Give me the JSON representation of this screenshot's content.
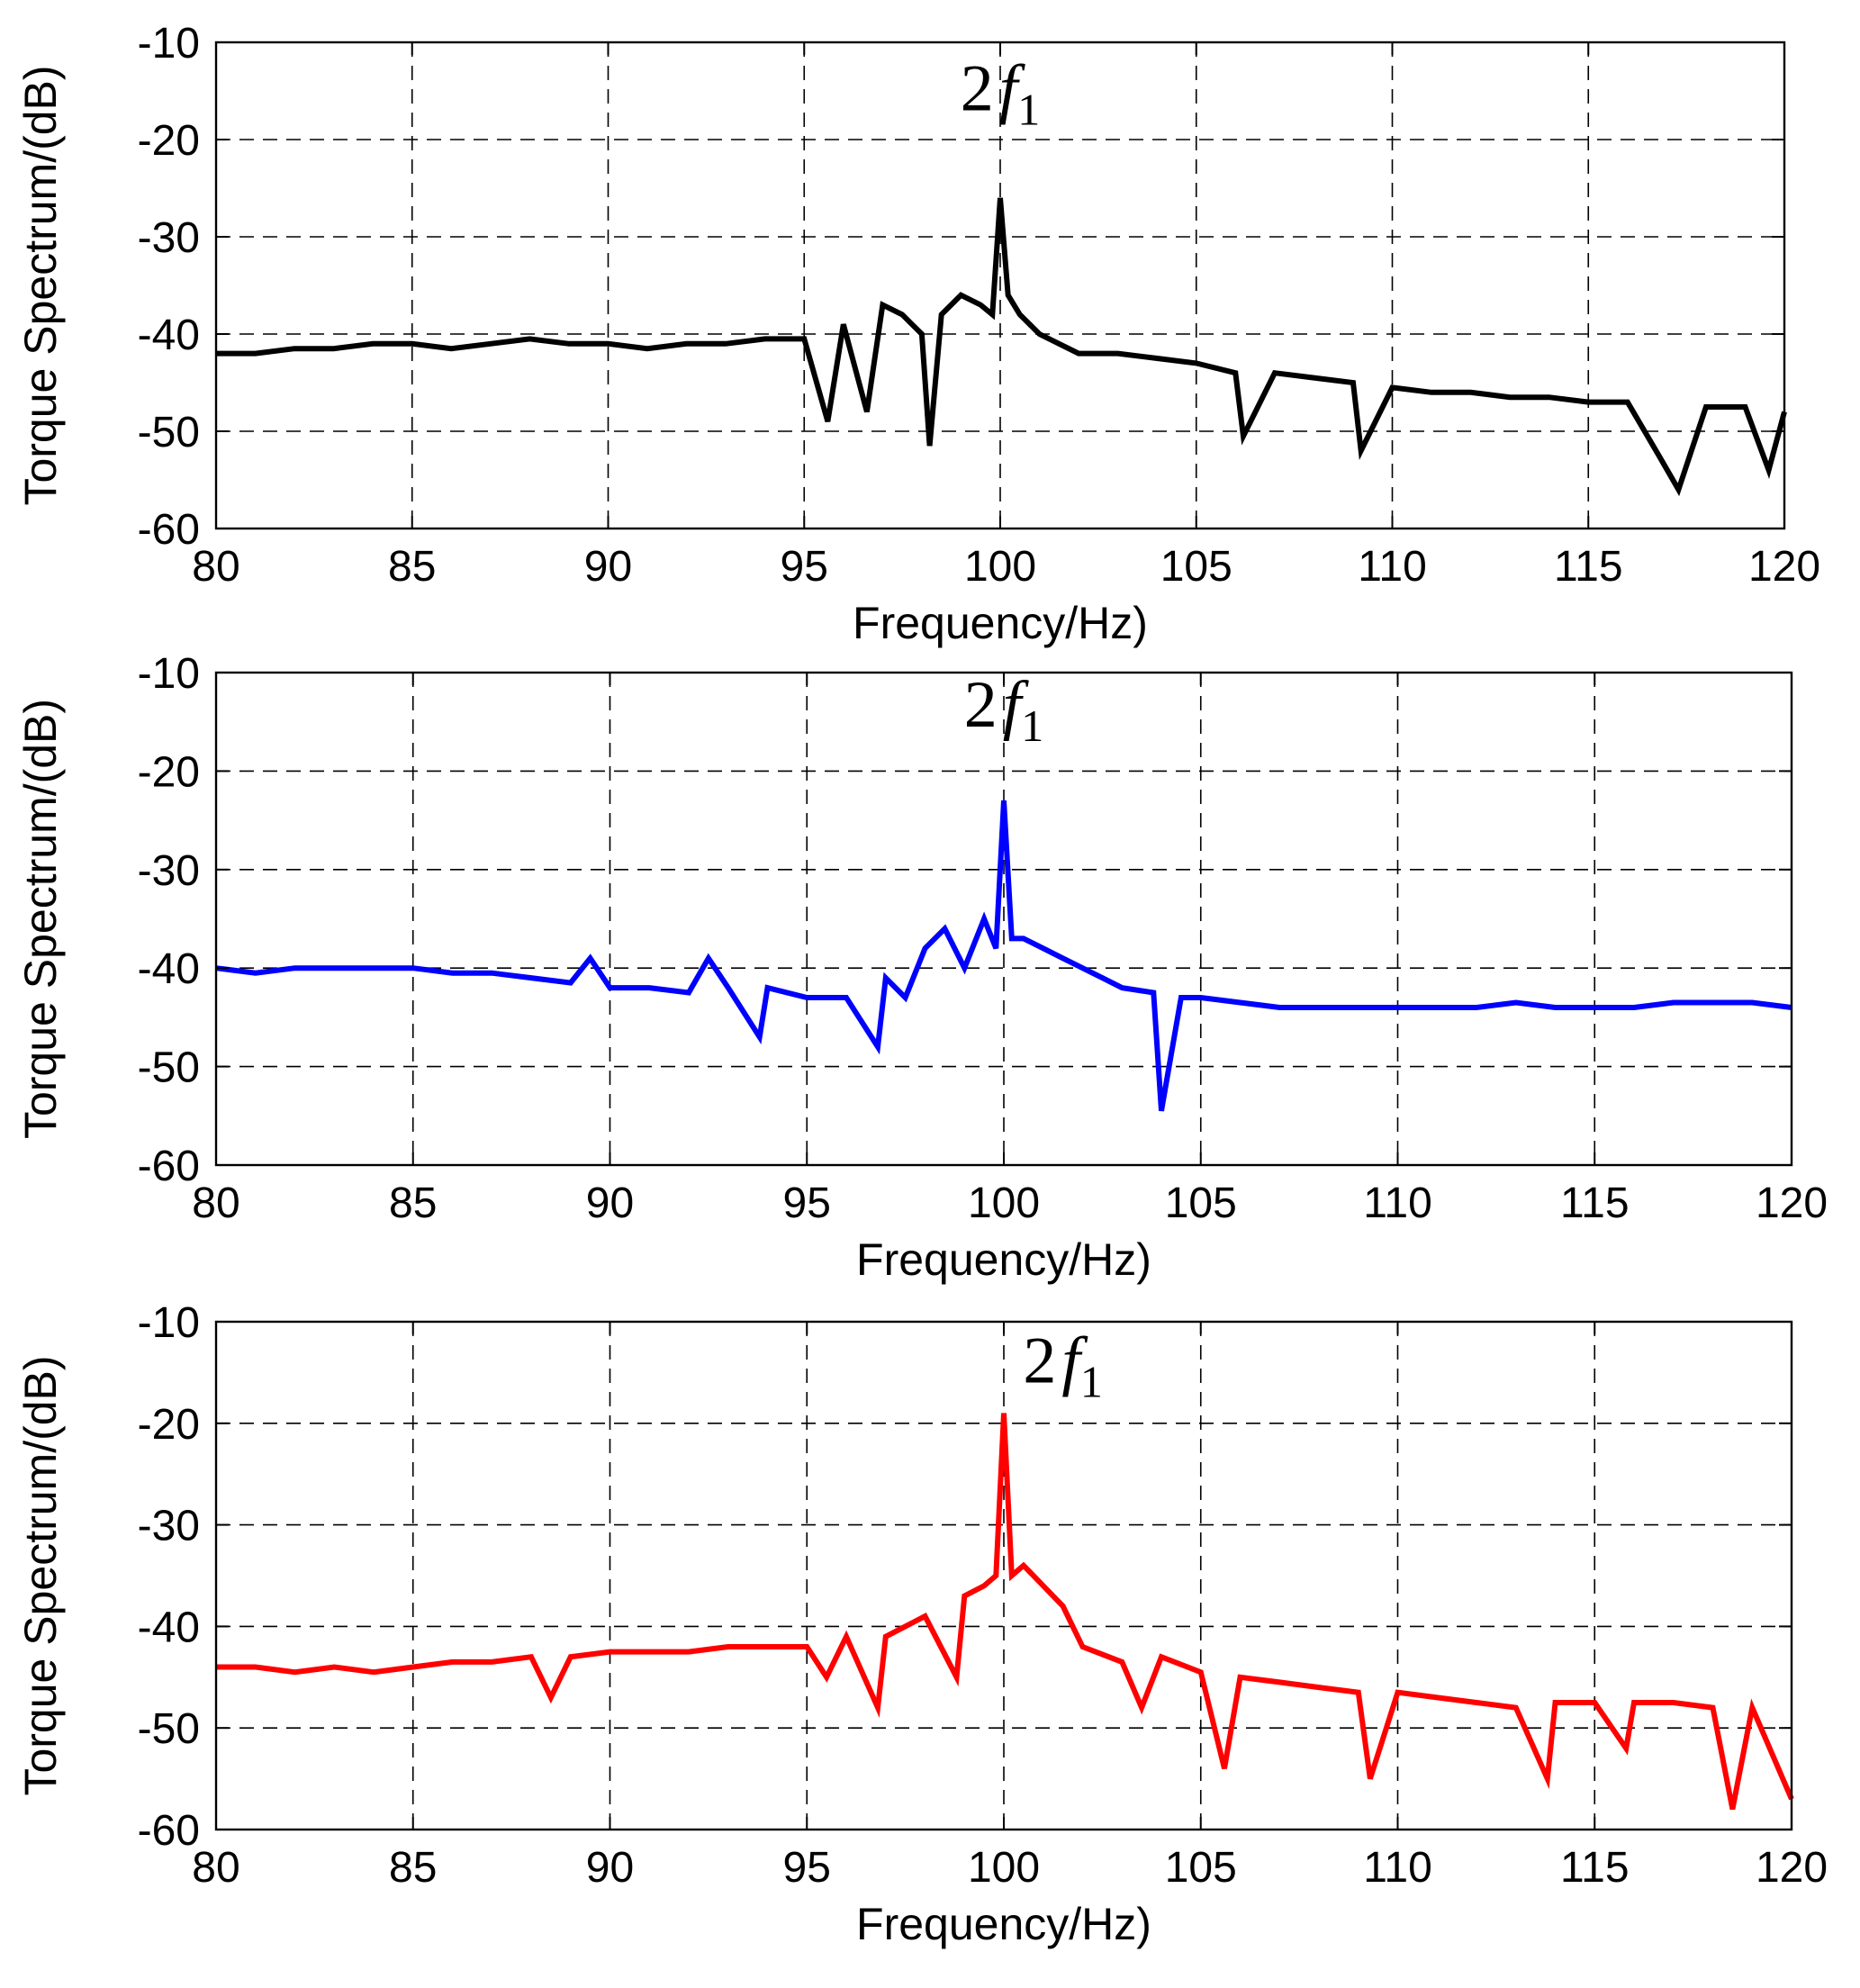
{
  "chart_data": [
    {
      "type": "line",
      "panel": "top",
      "xlabel": "Frequency/Hz)",
      "ylabel": "Torque Spectrum/(dB)",
      "xlim": [
        80,
        120
      ],
      "ylim": [
        -60,
        -10
      ],
      "xticks": [
        80,
        85,
        90,
        95,
        100,
        105,
        110,
        115,
        120
      ],
      "yticks": [
        -10,
        -20,
        -30,
        -40,
        -50,
        -60
      ],
      "xtick_labels": [
        "80",
        "85",
        "90",
        "95",
        "100",
        "105",
        "110",
        "115",
        "120"
      ],
      "ytick_labels": [
        "-10",
        "-20",
        "-30",
        "-40",
        "-50",
        "-60"
      ],
      "grid": true,
      "annotation": {
        "base": "2",
        "italic": "f",
        "subscript": "1",
        "x": 100,
        "y": -17
      },
      "series": [
        {
          "name": "torque spectrum (black)",
          "color": "#000000",
          "x": [
            80,
            81,
            82,
            83,
            84,
            85,
            86,
            87,
            88,
            89,
            90,
            91,
            92,
            93,
            94,
            95,
            95.6,
            96,
            96.6,
            97,
            97.5,
            98,
            98.2,
            98.5,
            99,
            99.5,
            99.8,
            100,
            100.2,
            100.5,
            101,
            101.5,
            102,
            103,
            104,
            105,
            106,
            106.2,
            107,
            108,
            109,
            109.2,
            110,
            111,
            112,
            113,
            114,
            115,
            116,
            116.8,
            117.3,
            118,
            119,
            119.6,
            120
          ],
          "y": [
            -42,
            -42,
            -41.5,
            -41.5,
            -41,
            -41,
            -41.5,
            -41,
            -40.5,
            -41,
            -41,
            -41.5,
            -41,
            -41,
            -40.5,
            -40.5,
            -49,
            -39,
            -48,
            -37,
            -38,
            -40,
            -51.5,
            -38,
            -36,
            -37,
            -38,
            -26,
            -36,
            -38,
            -40,
            -41,
            -42,
            -42,
            -42.5,
            -43,
            -44,
            -50.5,
            -44,
            -44.5,
            -45,
            -52,
            -45.5,
            -46,
            -46,
            -46.5,
            -46.5,
            -47,
            -47,
            -52.5,
            -56,
            -47.5,
            -47.5,
            -54,
            -48
          ]
        }
      ]
    },
    {
      "type": "line",
      "panel": "middle",
      "xlabel": "Frequency/Hz)",
      "ylabel": "Torque Spectrum/(dB)",
      "xlim": [
        80,
        120
      ],
      "ylim": [
        -60,
        -10
      ],
      "xticks": [
        80,
        85,
        90,
        95,
        100,
        105,
        110,
        115,
        120
      ],
      "yticks": [
        -10,
        -20,
        -30,
        -40,
        -50,
        -60
      ],
      "xtick_labels": [
        "80",
        "85",
        "90",
        "95",
        "100",
        "105",
        "110",
        "115",
        "120"
      ],
      "ytick_labels": [
        "-10",
        "-20",
        "-30",
        "-40",
        "-50",
        "-60"
      ],
      "grid": true,
      "annotation": {
        "base": "2",
        "italic": "f",
        "subscript": "1",
        "x": 100,
        "y": -15.5
      },
      "series": [
        {
          "name": "torque spectrum (blue)",
          "color": "#0000ff",
          "x": [
            80,
            81,
            82,
            83,
            84,
            85,
            86,
            87,
            88,
            89,
            89.5,
            90,
            91,
            92,
            92.5,
            93,
            93.8,
            94,
            95,
            96,
            96.8,
            97,
            97.5,
            98,
            98.5,
            99,
            99.5,
            99.8,
            100,
            100.2,
            100.5,
            101,
            101.5,
            102,
            102.5,
            103,
            103.8,
            104,
            104.5,
            105,
            106,
            107,
            108,
            109,
            110,
            111,
            112,
            113,
            114,
            115,
            116,
            117,
            118,
            119,
            120
          ],
          "y": [
            -40,
            -40.5,
            -40,
            -40,
            -40,
            -40,
            -40.5,
            -40.5,
            -41,
            -41.5,
            -39,
            -42,
            -42,
            -42.5,
            -39,
            -42,
            -47,
            -42,
            -43,
            -43,
            -48,
            -41,
            -43,
            -38,
            -36,
            -40,
            -35,
            -38,
            -23,
            -37,
            -37,
            -38,
            -39,
            -40,
            -41,
            -42,
            -42.5,
            -54.5,
            -43,
            -43,
            -43.5,
            -44,
            -44,
            -44,
            -44,
            -44,
            -44,
            -43.5,
            -44,
            -44,
            -44,
            -43.5,
            -43.5,
            -43.5,
            -44
          ]
        }
      ]
    },
    {
      "type": "line",
      "panel": "bottom",
      "xlabel": "Frequency/Hz)",
      "ylabel": "Torque Spectrum/(dB)",
      "xlim": [
        80,
        120
      ],
      "ylim": [
        -60,
        -10
      ],
      "xticks": [
        80,
        85,
        90,
        95,
        100,
        105,
        110,
        115,
        120
      ],
      "yticks": [
        -10,
        -20,
        -30,
        -40,
        -50,
        -60
      ],
      "xtick_labels": [
        "80",
        "85",
        "90",
        "95",
        "100",
        "105",
        "110",
        "115",
        "120"
      ],
      "ytick_labels": [
        "-10",
        "-20",
        "-30",
        "-40",
        "-50",
        "-60"
      ],
      "grid": true,
      "annotation": {
        "base": "2",
        "italic": "f",
        "subscript": "1",
        "x": 101.5,
        "y": -16
      },
      "series": [
        {
          "name": "torque spectrum (red)",
          "color": "#ff0000",
          "x": [
            80,
            81,
            82,
            83,
            84,
            85,
            86,
            87,
            88,
            88.5,
            89,
            90,
            91,
            92,
            93,
            94,
            95,
            95.5,
            96,
            96.8,
            97,
            98,
            98.8,
            99,
            99.5,
            99.8,
            100,
            100.2,
            100.5,
            101,
            101.5,
            102,
            103,
            103.5,
            104,
            105,
            105.6,
            106,
            107,
            108,
            109,
            109.3,
            110,
            111,
            112,
            113,
            113.8,
            114,
            115,
            115.8,
            116,
            117,
            118,
            118.5,
            119,
            120
          ],
          "y": [
            -44,
            -44,
            -44.5,
            -44,
            -44.5,
            -44,
            -43.5,
            -43.5,
            -43,
            -47,
            -43,
            -42.5,
            -42.5,
            -42.5,
            -42,
            -42,
            -42,
            -45,
            -41,
            -48,
            -41,
            -39,
            -45,
            -37,
            -36,
            -35,
            -19,
            -35,
            -34,
            -36,
            -38,
            -42,
            -43.5,
            -48,
            -43,
            -44.5,
            -54,
            -45,
            -45.5,
            -46,
            -46.5,
            -55,
            -46.5,
            -47,
            -47.5,
            -48,
            -55,
            -47.5,
            -47.5,
            -52,
            -47.5,
            -47.5,
            -48,
            -58,
            -48,
            -57
          ]
        }
      ]
    }
  ]
}
